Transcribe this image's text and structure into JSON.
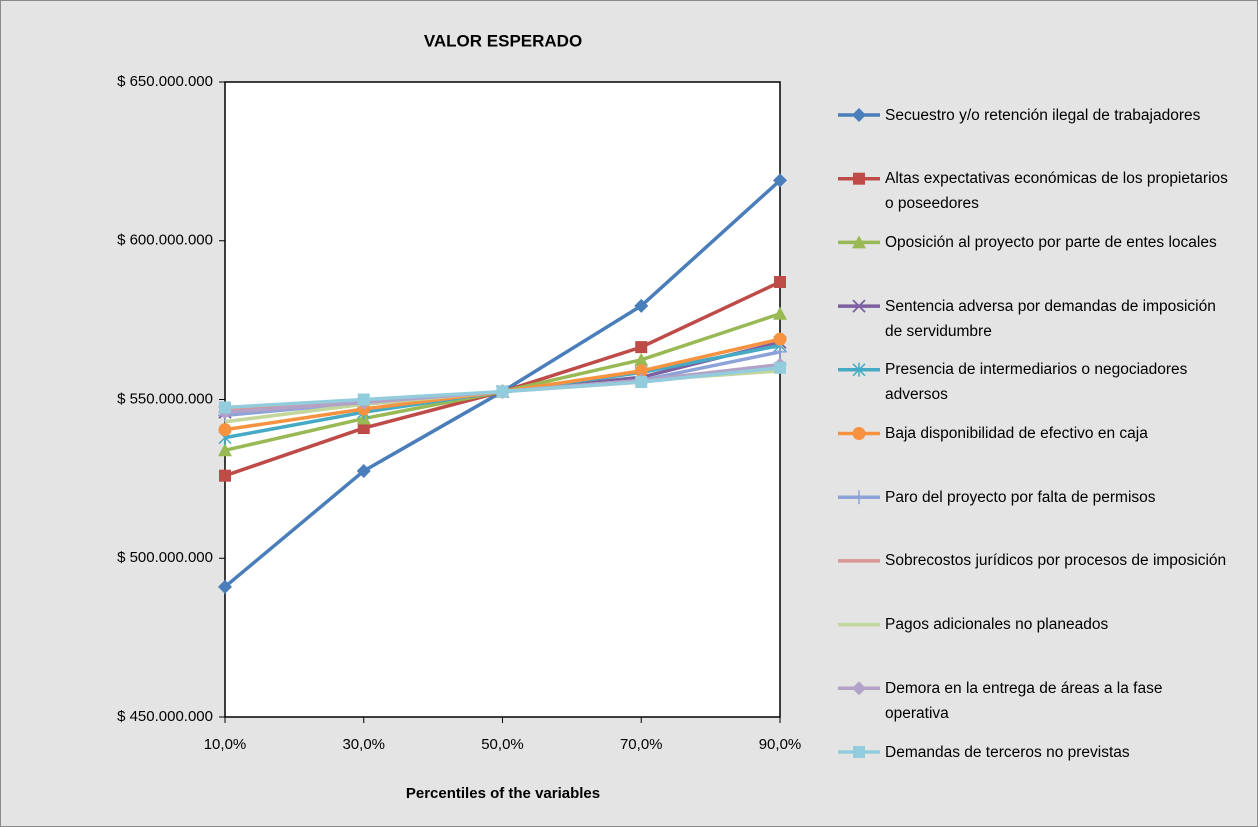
{
  "chart_data": {
    "type": "line",
    "title": "VALOR ESPERADO",
    "x_label": "Percentiles of the variables",
    "categories": [
      "10,0%",
      "30,0%",
      "50,0%",
      "70,0%",
      "90,0%"
    ],
    "ylim": [
      450000000,
      650000000
    ],
    "yticks": [
      {
        "value": 450000000,
        "label": "$ 450.000.000"
      },
      {
        "value": 500000000,
        "label": "$ 500.000.000"
      },
      {
        "value": 550000000,
        "label": "$ 550.000.000"
      },
      {
        "value": 600000000,
        "label": "$ 600.000.000"
      },
      {
        "value": 650000000,
        "label": "$ 650.000.000"
      }
    ],
    "grid": false,
    "legend": "right",
    "series": [
      {
        "name": "Secuestro y/o retención ilegal de trabajadores",
        "color": "#4a7ebb",
        "marker": "diamond",
        "values": [
          491000000,
          527500000,
          552500000,
          579500000,
          619000000
        ]
      },
      {
        "name": "Altas expectativas económicas de los propietarios o poseedores",
        "color": "#be4b48",
        "marker": "square",
        "values": [
          526000000,
          541000000,
          552500000,
          566500000,
          587000000
        ]
      },
      {
        "name": "Oposición al proyecto por parte de entes locales",
        "color": "#98b954",
        "marker": "triangle",
        "values": [
          534000000,
          544000000,
          552500000,
          562500000,
          577000000
        ]
      },
      {
        "name": "Sentencia adversa por demandas de imposición de servidumbre",
        "color": "#7d60a0",
        "marker": "x",
        "values": [
          546000000,
          548500000,
          552500000,
          557000000,
          568000000
        ]
      },
      {
        "name": "Presencia de intermediarios o negociadores adversos",
        "color": "#46aac5",
        "marker": "star",
        "values": [
          538000000,
          546000000,
          552500000,
          558500000,
          567000000
        ]
      },
      {
        "name": "Baja disponibilidad de efectivo en caja",
        "color": "#f69240",
        "marker": "circle",
        "values": [
          540500000,
          547000000,
          552500000,
          559000000,
          569000000
        ]
      },
      {
        "name": "Paro del proyecto por falta de permisos",
        "color": "#8da2d6",
        "marker": "plus",
        "values": [
          545000000,
          549000000,
          552500000,
          556000000,
          565000000
        ]
      },
      {
        "name": "Sobrecostos jurídicos por procesos de imposición",
        "color": "#d99694",
        "marker": "none",
        "values": [
          547000000,
          549500000,
          552500000,
          555500000,
          560000000
        ]
      },
      {
        "name": "Pagos adicionales no planeados",
        "color": "#c3d69b",
        "marker": "none",
        "values": [
          543000000,
          548500000,
          552500000,
          556000000,
          559000000
        ]
      },
      {
        "name": "Demora en la entrega de áreas a la fase operativa",
        "color": "#b3a2c7",
        "marker": "diamond",
        "values": [
          546000000,
          549000000,
          552500000,
          556000000,
          561000000
        ]
      },
      {
        "name": "Demandas de terceros no previstas",
        "color": "#93cddd",
        "marker": "square",
        "values": [
          547500000,
          550000000,
          552500000,
          555500000,
          560000000
        ]
      }
    ]
  }
}
